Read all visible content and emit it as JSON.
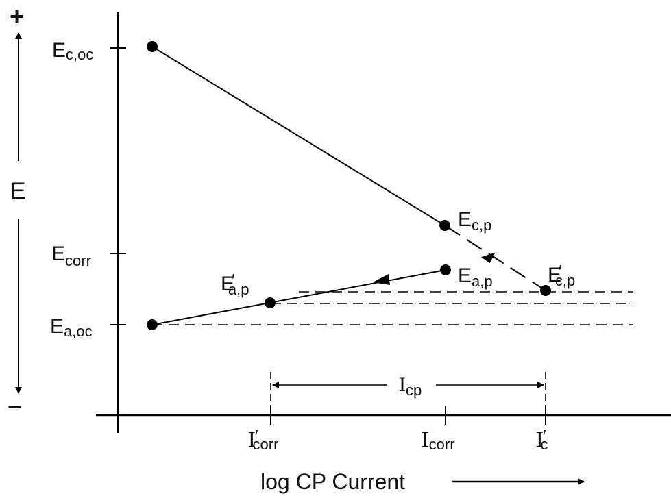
{
  "axes": {
    "y_label": "E",
    "y_plus": "+",
    "y_minus": "−",
    "x_label": "log CP Current"
  },
  "y_ticks": {
    "e_c_oc": {
      "main": "E",
      "sub": "c,oc"
    },
    "e_corr": {
      "main": "E",
      "sub": "corr"
    },
    "e_a_oc": {
      "main": "E",
      "sub": "a,oc"
    }
  },
  "x_ticks": {
    "i_corr_prime": {
      "main": "I",
      "prime": "′",
      "sub": "corr"
    },
    "i_corr": {
      "main": "I",
      "sub": "corr"
    },
    "i_c_prime": {
      "main": "I",
      "prime": "′",
      "sub": "c"
    }
  },
  "points": {
    "e_c_p": {
      "main": "E",
      "sub": "c,p"
    },
    "e_a_p": {
      "main": "E",
      "sub": "a,p"
    },
    "e_a_p_prime": {
      "main": "E",
      "prime": "′",
      "sub": "a,p"
    },
    "e_c_p_prime": {
      "main": "E",
      "prime": "′",
      "sub": "c,p"
    }
  },
  "span": {
    "main": "I",
    "sub": "cp"
  }
}
